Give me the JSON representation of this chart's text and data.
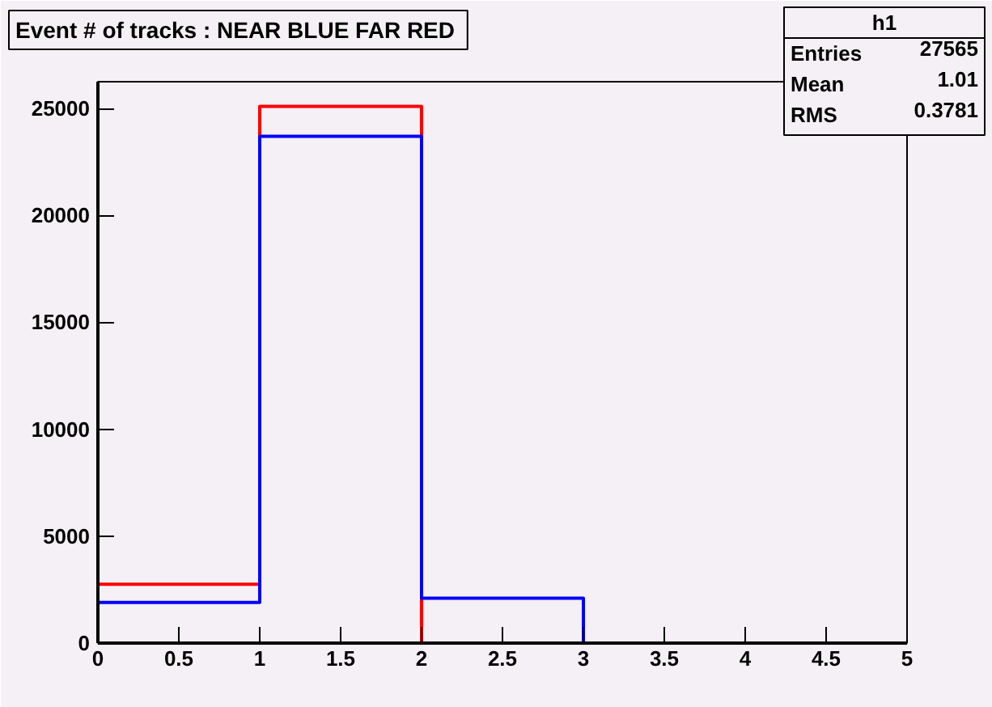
{
  "chart_data": {
    "type": "histogram",
    "title": "Event # of tracks  : NEAR BLUE FAR RED",
    "bins": [
      0,
      1,
      2,
      3,
      4,
      5
    ],
    "series": [
      {
        "color": "#ff0000",
        "values": [
          2750,
          25100,
          0,
          0,
          0
        ]
      },
      {
        "color": "#0000ff",
        "values": [
          1900,
          23700,
          2100,
          0,
          0
        ]
      }
    ],
    "xlim": [
      0,
      5
    ],
    "ylim": [
      0,
      26250
    ],
    "xticks": [
      0,
      0.5,
      1,
      1.5,
      2,
      2.5,
      3,
      3.5,
      4,
      4.5,
      5
    ],
    "yticks": [
      0,
      5000,
      10000,
      15000,
      20000,
      25000
    ],
    "grid": false,
    "annotations": [
      "h1",
      "Entries",
      "27565",
      "Mean",
      "1.01",
      "RMS",
      "0.3781"
    ]
  }
}
